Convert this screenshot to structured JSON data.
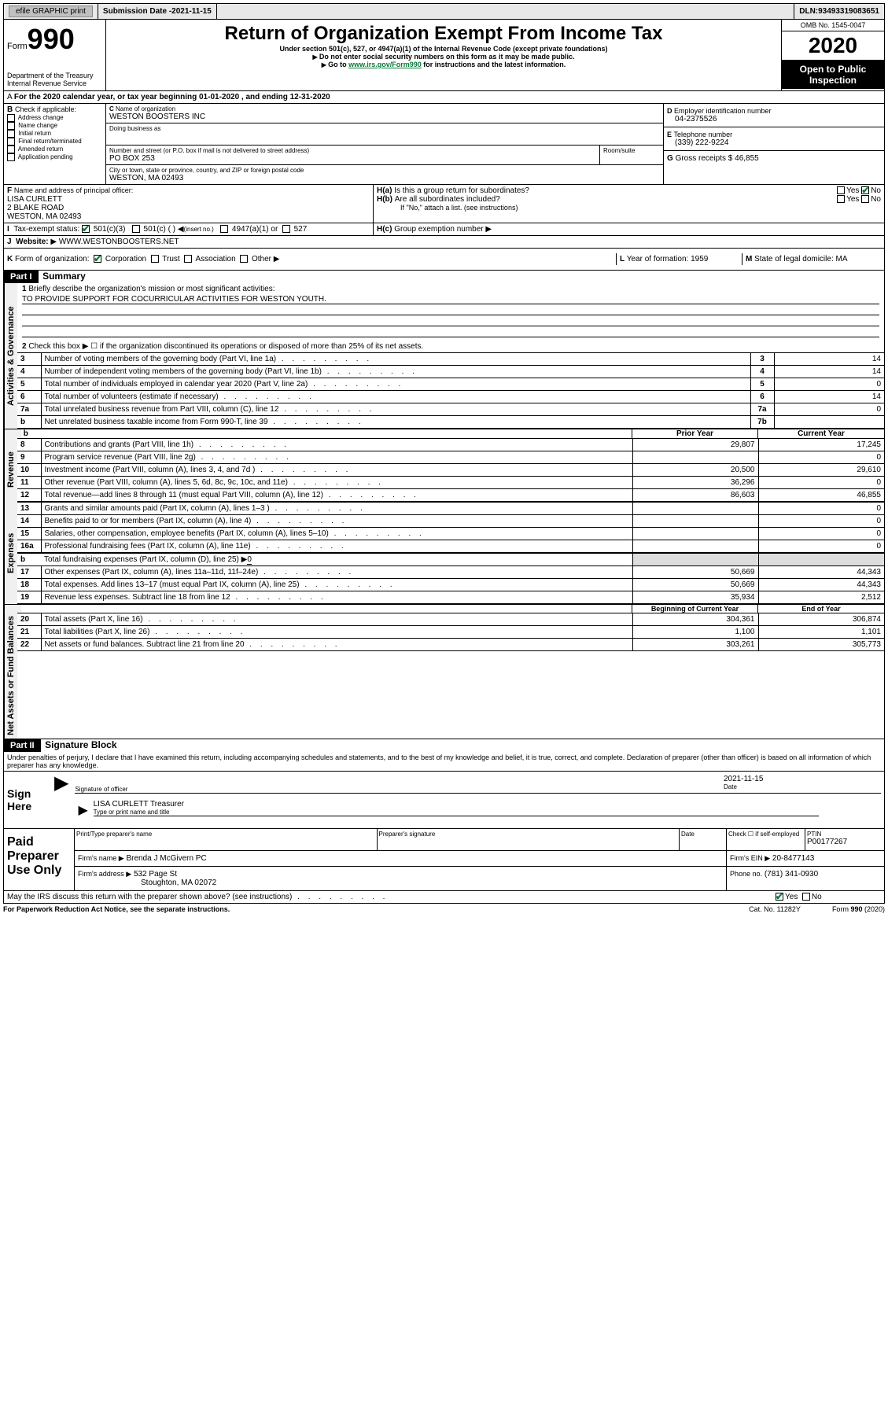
{
  "topbar": {
    "efile": "efile GRAPHIC print",
    "subdate_label": "Submission Date - ",
    "subdate": "2021-11-15",
    "dln_label": "DLN: ",
    "dln": "93493319083651"
  },
  "header": {
    "form_word": "Form",
    "form_num": "990",
    "dept": "Department of the Treasury",
    "irs": "Internal Revenue Service",
    "title": "Return of Organization Exempt From Income Tax",
    "subtitle": "Under section 501(c), 527, or 4947(a)(1) of the Internal Revenue Code (except private foundations)",
    "note1": "Do not enter social security numbers on this form as it may be made public.",
    "note2_pre": "Go to ",
    "note2_link": "www.irs.gov/Form990",
    "note2_post": " for instructions and the latest information.",
    "omb": "OMB No. 1545-0047",
    "year": "2020",
    "open": "Open to Public Inspection"
  },
  "periodA": "For the 2020 calendar year, or tax year beginning 01-01-2020   , and ending 12-31-2020",
  "sectionB": {
    "label": "Check if applicable:",
    "items": [
      "Address change",
      "Name change",
      "Initial return",
      "Final return/terminated",
      "Amended return",
      "Application pending"
    ]
  },
  "sectionC": {
    "name_label": "Name of organization",
    "name": "WESTON BOOSTERS INC",
    "dba_label": "Doing business as",
    "street_label": "Number and street (or P.O. box if mail is not delivered to street address)",
    "room_label": "Room/suite",
    "street": "PO BOX 253",
    "city_label": "City or town, state or province, country, and ZIP or foreign postal code",
    "city": "WESTON, MA  02493"
  },
  "sectionD": {
    "label": "Employer identification number",
    "value": "04-2375526"
  },
  "sectionE": {
    "label": "Telephone number",
    "value": "(339) 222-9224"
  },
  "sectionG": {
    "label": "Gross receipts $",
    "value": "46,855"
  },
  "sectionF": {
    "label": "Name and address of principal officer:",
    "name": "LISA CURLETT",
    "street": "2 BLAKE ROAD",
    "city": "WESTON, MA  02493"
  },
  "sectionH": {
    "a": "Is this a group return for subordinates?",
    "b": "Are all subordinates included?",
    "bnote": "If \"No,\" attach a list. (see instructions)",
    "c": "Group exemption number"
  },
  "sectionI": {
    "label": "Tax-exempt status:",
    "opt1": "501(c)(3)",
    "opt2": "501(c) (   )",
    "opt2hint": "(insert no.)",
    "opt3": "4947(a)(1) or",
    "opt4": "527"
  },
  "sectionJ": {
    "label": "Website:",
    "value": "WWW.WESTONBOOSTERS.NET"
  },
  "sectionK": {
    "label": "Form of organization:",
    "opts": [
      "Corporation",
      "Trust",
      "Association",
      "Other"
    ]
  },
  "sectionL": {
    "label": "Year of formation:",
    "value": "1959"
  },
  "sectionM": {
    "label": "State of legal domicile:",
    "value": "MA"
  },
  "part1": {
    "bar": "Part I",
    "title": "Summary",
    "q1": "Briefly describe the organization's mission or most significant activities:",
    "q1val": "TO PROVIDE SUPPORT FOR COCURRICULAR ACTIVITIES FOR WESTON YOUTH.",
    "q2": "Check this box ▶ ☐  if the organization discontinued its operations or disposed of more than 25% of its net assets.",
    "rows_gov": [
      {
        "n": "3",
        "t": "Number of voting members of the governing body (Part VI, line 1a)",
        "box": "3",
        "v": "14"
      },
      {
        "n": "4",
        "t": "Number of independent voting members of the governing body (Part VI, line 1b)",
        "box": "4",
        "v": "14"
      },
      {
        "n": "5",
        "t": "Total number of individuals employed in calendar year 2020 (Part V, line 2a)",
        "box": "5",
        "v": "0"
      },
      {
        "n": "6",
        "t": "Total number of volunteers (estimate if necessary)",
        "box": "6",
        "v": "14"
      },
      {
        "n": "7a",
        "t": "Total unrelated business revenue from Part VIII, column (C), line 12",
        "box": "7a",
        "v": "0"
      },
      {
        "n": "b",
        "t": "Net unrelated business taxable income from Form 990-T, line 39",
        "box": "7b",
        "v": ""
      }
    ],
    "pycol": "Prior Year",
    "cycol": "Current Year",
    "rows_rev": [
      {
        "n": "8",
        "t": "Contributions and grants (Part VIII, line 1h)",
        "py": "29,807",
        "cy": "17,245"
      },
      {
        "n": "9",
        "t": "Program service revenue (Part VIII, line 2g)",
        "py": "",
        "cy": "0"
      },
      {
        "n": "10",
        "t": "Investment income (Part VIII, column (A), lines 3, 4, and 7d )",
        "py": "20,500",
        "cy": "29,610"
      },
      {
        "n": "11",
        "t": "Other revenue (Part VIII, column (A), lines 5, 6d, 8c, 9c, 10c, and 11e)",
        "py": "36,296",
        "cy": "0"
      },
      {
        "n": "12",
        "t": "Total revenue—add lines 8 through 11 (must equal Part VIII, column (A), line 12)",
        "py": "86,603",
        "cy": "46,855"
      }
    ],
    "rows_exp": [
      {
        "n": "13",
        "t": "Grants and similar amounts paid (Part IX, column (A), lines 1–3 )",
        "py": "",
        "cy": "0"
      },
      {
        "n": "14",
        "t": "Benefits paid to or for members (Part IX, column (A), line 4)",
        "py": "",
        "cy": "0"
      },
      {
        "n": "15",
        "t": "Salaries, other compensation, employee benefits (Part IX, column (A), lines 5–10)",
        "py": "",
        "cy": "0"
      },
      {
        "n": "16a",
        "t": "Professional fundraising fees (Part IX, column (A), line 11e)",
        "py": "",
        "cy": "0"
      }
    ],
    "row16b": {
      "n": "b",
      "t": "Total fundraising expenses (Part IX, column (D), line 25) ▶",
      "v": "0"
    },
    "rows_exp2": [
      {
        "n": "17",
        "t": "Other expenses (Part IX, column (A), lines 11a–11d, 11f–24e)",
        "py": "50,669",
        "cy": "44,343"
      },
      {
        "n": "18",
        "t": "Total expenses. Add lines 13–17 (must equal Part IX, column (A), line 25)",
        "py": "50,669",
        "cy": "44,343"
      },
      {
        "n": "19",
        "t": "Revenue less expenses. Subtract line 18 from line 12",
        "py": "35,934",
        "cy": "2,512"
      }
    ],
    "bcycol": "Beginning of Current Year",
    "ecycol": "End of Year",
    "rows_net": [
      {
        "n": "20",
        "t": "Total assets (Part X, line 16)",
        "py": "304,361",
        "cy": "306,874"
      },
      {
        "n": "21",
        "t": "Total liabilities (Part X, line 26)",
        "py": "1,100",
        "cy": "1,101"
      },
      {
        "n": "22",
        "t": "Net assets or fund balances. Subtract line 21 from line 20",
        "py": "303,261",
        "cy": "305,773"
      }
    ]
  },
  "part2": {
    "bar": "Part II",
    "title": "Signature Block",
    "decl": "Under penalties of perjury, I declare that I have examined this return, including accompanying schedules and statements, and to the best of my knowledge and belief, it is true, correct, and complete. Declaration of preparer (other than officer) is based on all information of which preparer has any knowledge.",
    "sign_here": "Sign Here",
    "sig_officer": "Signature of officer",
    "date_label": "Date",
    "sig_date": "2021-11-15",
    "name_title": "LISA CURLETT Treasurer",
    "type_label": "Type or print name and title",
    "paid": "Paid Preparer Use Only",
    "p_name_label": "Print/Type preparer's name",
    "p_sig_label": "Preparer's signature",
    "p_date_label": "Date",
    "p_check": "Check ☐ if self-employed",
    "ptin_label": "PTIN",
    "ptin": "P00177267",
    "firm_name_label": "Firm's name   ▶",
    "firm_name": "Brenda J McGivern PC",
    "firm_ein_label": "Firm's EIN ▶",
    "firm_ein": "20-8477143",
    "firm_addr_label": "Firm's address ▶",
    "firm_addr1": "532 Page St",
    "firm_addr2": "Stoughton, MA  02072",
    "phone_label": "Phone no.",
    "phone": "(781) 341-0930",
    "discuss": "May the IRS discuss this return with the preparer shown above? (see instructions)"
  },
  "footer": {
    "paperwork": "For Paperwork Reduction Act Notice, see the separate instructions.",
    "cat": "Cat. No. 11282Y",
    "form": "Form 990 (2020)"
  },
  "yes": "Yes",
  "no": "No",
  "sidelabels": {
    "gov": "Activities & Governance",
    "rev": "Revenue",
    "exp": "Expenses",
    "net": "Net Assets or Fund Balances"
  }
}
